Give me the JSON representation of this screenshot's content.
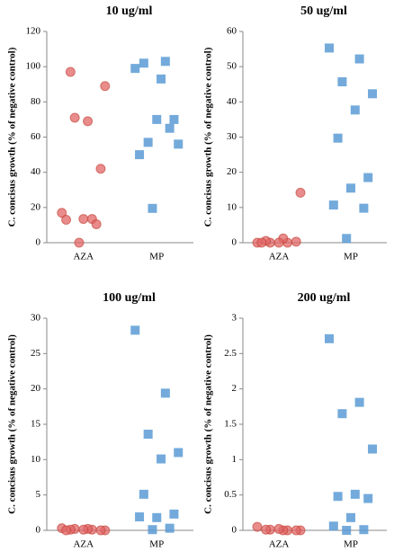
{
  "chart_data": [
    {
      "type": "scatter",
      "title": "10 ug/ml",
      "ylabel": "C. concisus growth (% of negative control)",
      "categories": [
        "AZA",
        "MP"
      ],
      "ylim": [
        0,
        120
      ],
      "yticks": [
        0,
        20,
        40,
        60,
        80,
        100,
        120
      ],
      "series": [
        {
          "color": "#e06666",
          "marker": "circle",
          "values": [
            17,
            13.5,
            71,
            89,
            69,
            97,
            42,
            13.5,
            13,
            10.5,
            0
          ]
        },
        {
          "color": "#5b9bd5",
          "marker": "square",
          "values": [
            99,
            103,
            57,
            56,
            93,
            102,
            70,
            70,
            50,
            65,
            19.5
          ]
        }
      ]
    },
    {
      "type": "scatter",
      "title": "50 ug/ml",
      "ylabel": "C. concisus growth (% of negative control)",
      "categories": [
        "AZA",
        "MP"
      ],
      "ylim": [
        0,
        60
      ],
      "yticks": [
        0,
        10,
        20,
        30,
        40,
        50,
        60
      ],
      "series": [
        {
          "color": "#e06666",
          "marker": "circle",
          "values": [
            0,
            0,
            0,
            14.2,
            1.2,
            0.5,
            0.3,
            0,
            0
          ]
        },
        {
          "color": "#5b9bd5",
          "marker": "square",
          "values": [
            55.3,
            52.2,
            45.7,
            42.3,
            37.7,
            29.7,
            18.5,
            15.5,
            10.7,
            9.8,
            1.2
          ]
        }
      ]
    },
    {
      "type": "scatter",
      "title": "100 ug/ml",
      "ylabel": "C. concisus growth (% of negative control)",
      "categories": [
        "AZA",
        "MP"
      ],
      "ylim": [
        0,
        30
      ],
      "yticks": [
        0,
        5,
        10,
        15,
        20,
        25,
        30
      ],
      "series": [
        {
          "color": "#e06666",
          "marker": "circle",
          "values": [
            0.3,
            0.1,
            0.2,
            0,
            0.2,
            0.1,
            0,
            0.1,
            0
          ]
        },
        {
          "color": "#5b9bd5",
          "marker": "square",
          "values": [
            28.3,
            19.4,
            13.6,
            11,
            10.1,
            5.1,
            2.3,
            1.8,
            1.9,
            0.3,
            0.1
          ]
        }
      ]
    },
    {
      "type": "scatter",
      "title": "200 ug/ml",
      "ylabel": "C. concisus growth (% of negative control)",
      "categories": [
        "AZA",
        "MP"
      ],
      "ylim": [
        0,
        3
      ],
      "yticks": [
        0,
        0.5,
        1,
        1.5,
        2,
        2.5,
        3
      ],
      "series": [
        {
          "color": "#e06666",
          "marker": "circle",
          "values": [
            0.05,
            0,
            0.01,
            0,
            0,
            0.01,
            0,
            0.02
          ]
        },
        {
          "color": "#5b9bd5",
          "marker": "square",
          "values": [
            2.71,
            1.81,
            1.65,
            1.15,
            0.51,
            0.48,
            0.45,
            0.18,
            0.06,
            0.01,
            0
          ]
        }
      ]
    }
  ]
}
